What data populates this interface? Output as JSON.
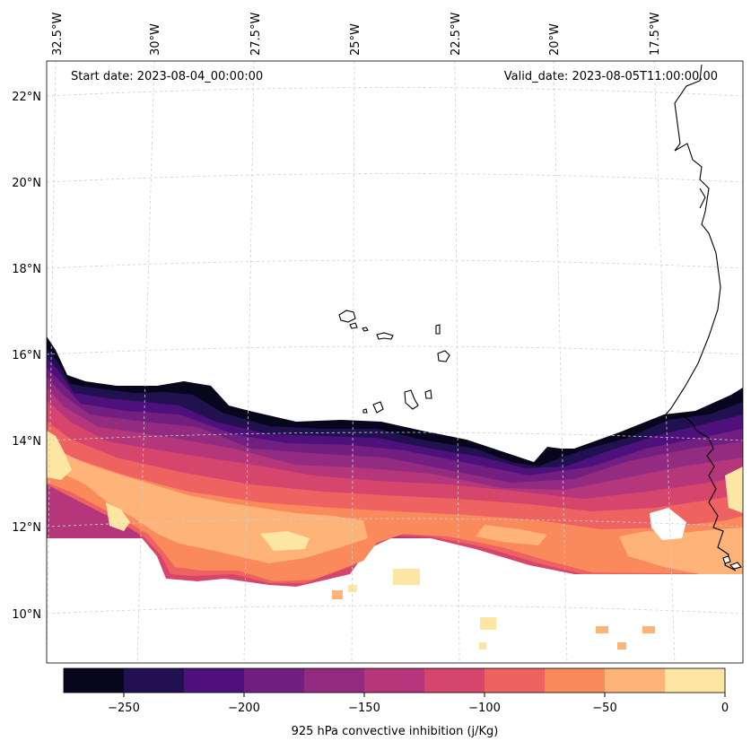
{
  "header": {
    "start_date": "Start date: 2023-08-04_00:00:00",
    "valid_date": "Valid_date: 2023-08-05T11:00:00.00"
  },
  "map": {
    "lon_labels": [
      "32.5°W",
      "30°W",
      "27.5°W",
      "25°W",
      "22.5°W",
      "20°W",
      "17.5°W"
    ],
    "lat_labels": [
      "22°N",
      "20°N",
      "18°N",
      "16°N",
      "14°N",
      "12°N",
      "10°N"
    ],
    "gridlines": "dashed",
    "field": "925 hPa convective inhibition"
  },
  "colorbar": {
    "label": "925 hPa convective inhibition (j/Kg)",
    "ticks": [
      "−250",
      "−200",
      "−150",
      "−100",
      "−50",
      "0"
    ],
    "levels": [
      -275,
      -250,
      -225,
      -200,
      -175,
      -150,
      -125,
      -100,
      -75,
      -50,
      -25,
      0
    ],
    "colors": [
      "#07061c",
      "#221150",
      "#4e117b",
      "#731f81",
      "#932b80",
      "#b5367a",
      "#d6456c",
      "#ef6262",
      "#fa8a5b",
      "#feb379",
      "#fde6a3"
    ]
  }
}
